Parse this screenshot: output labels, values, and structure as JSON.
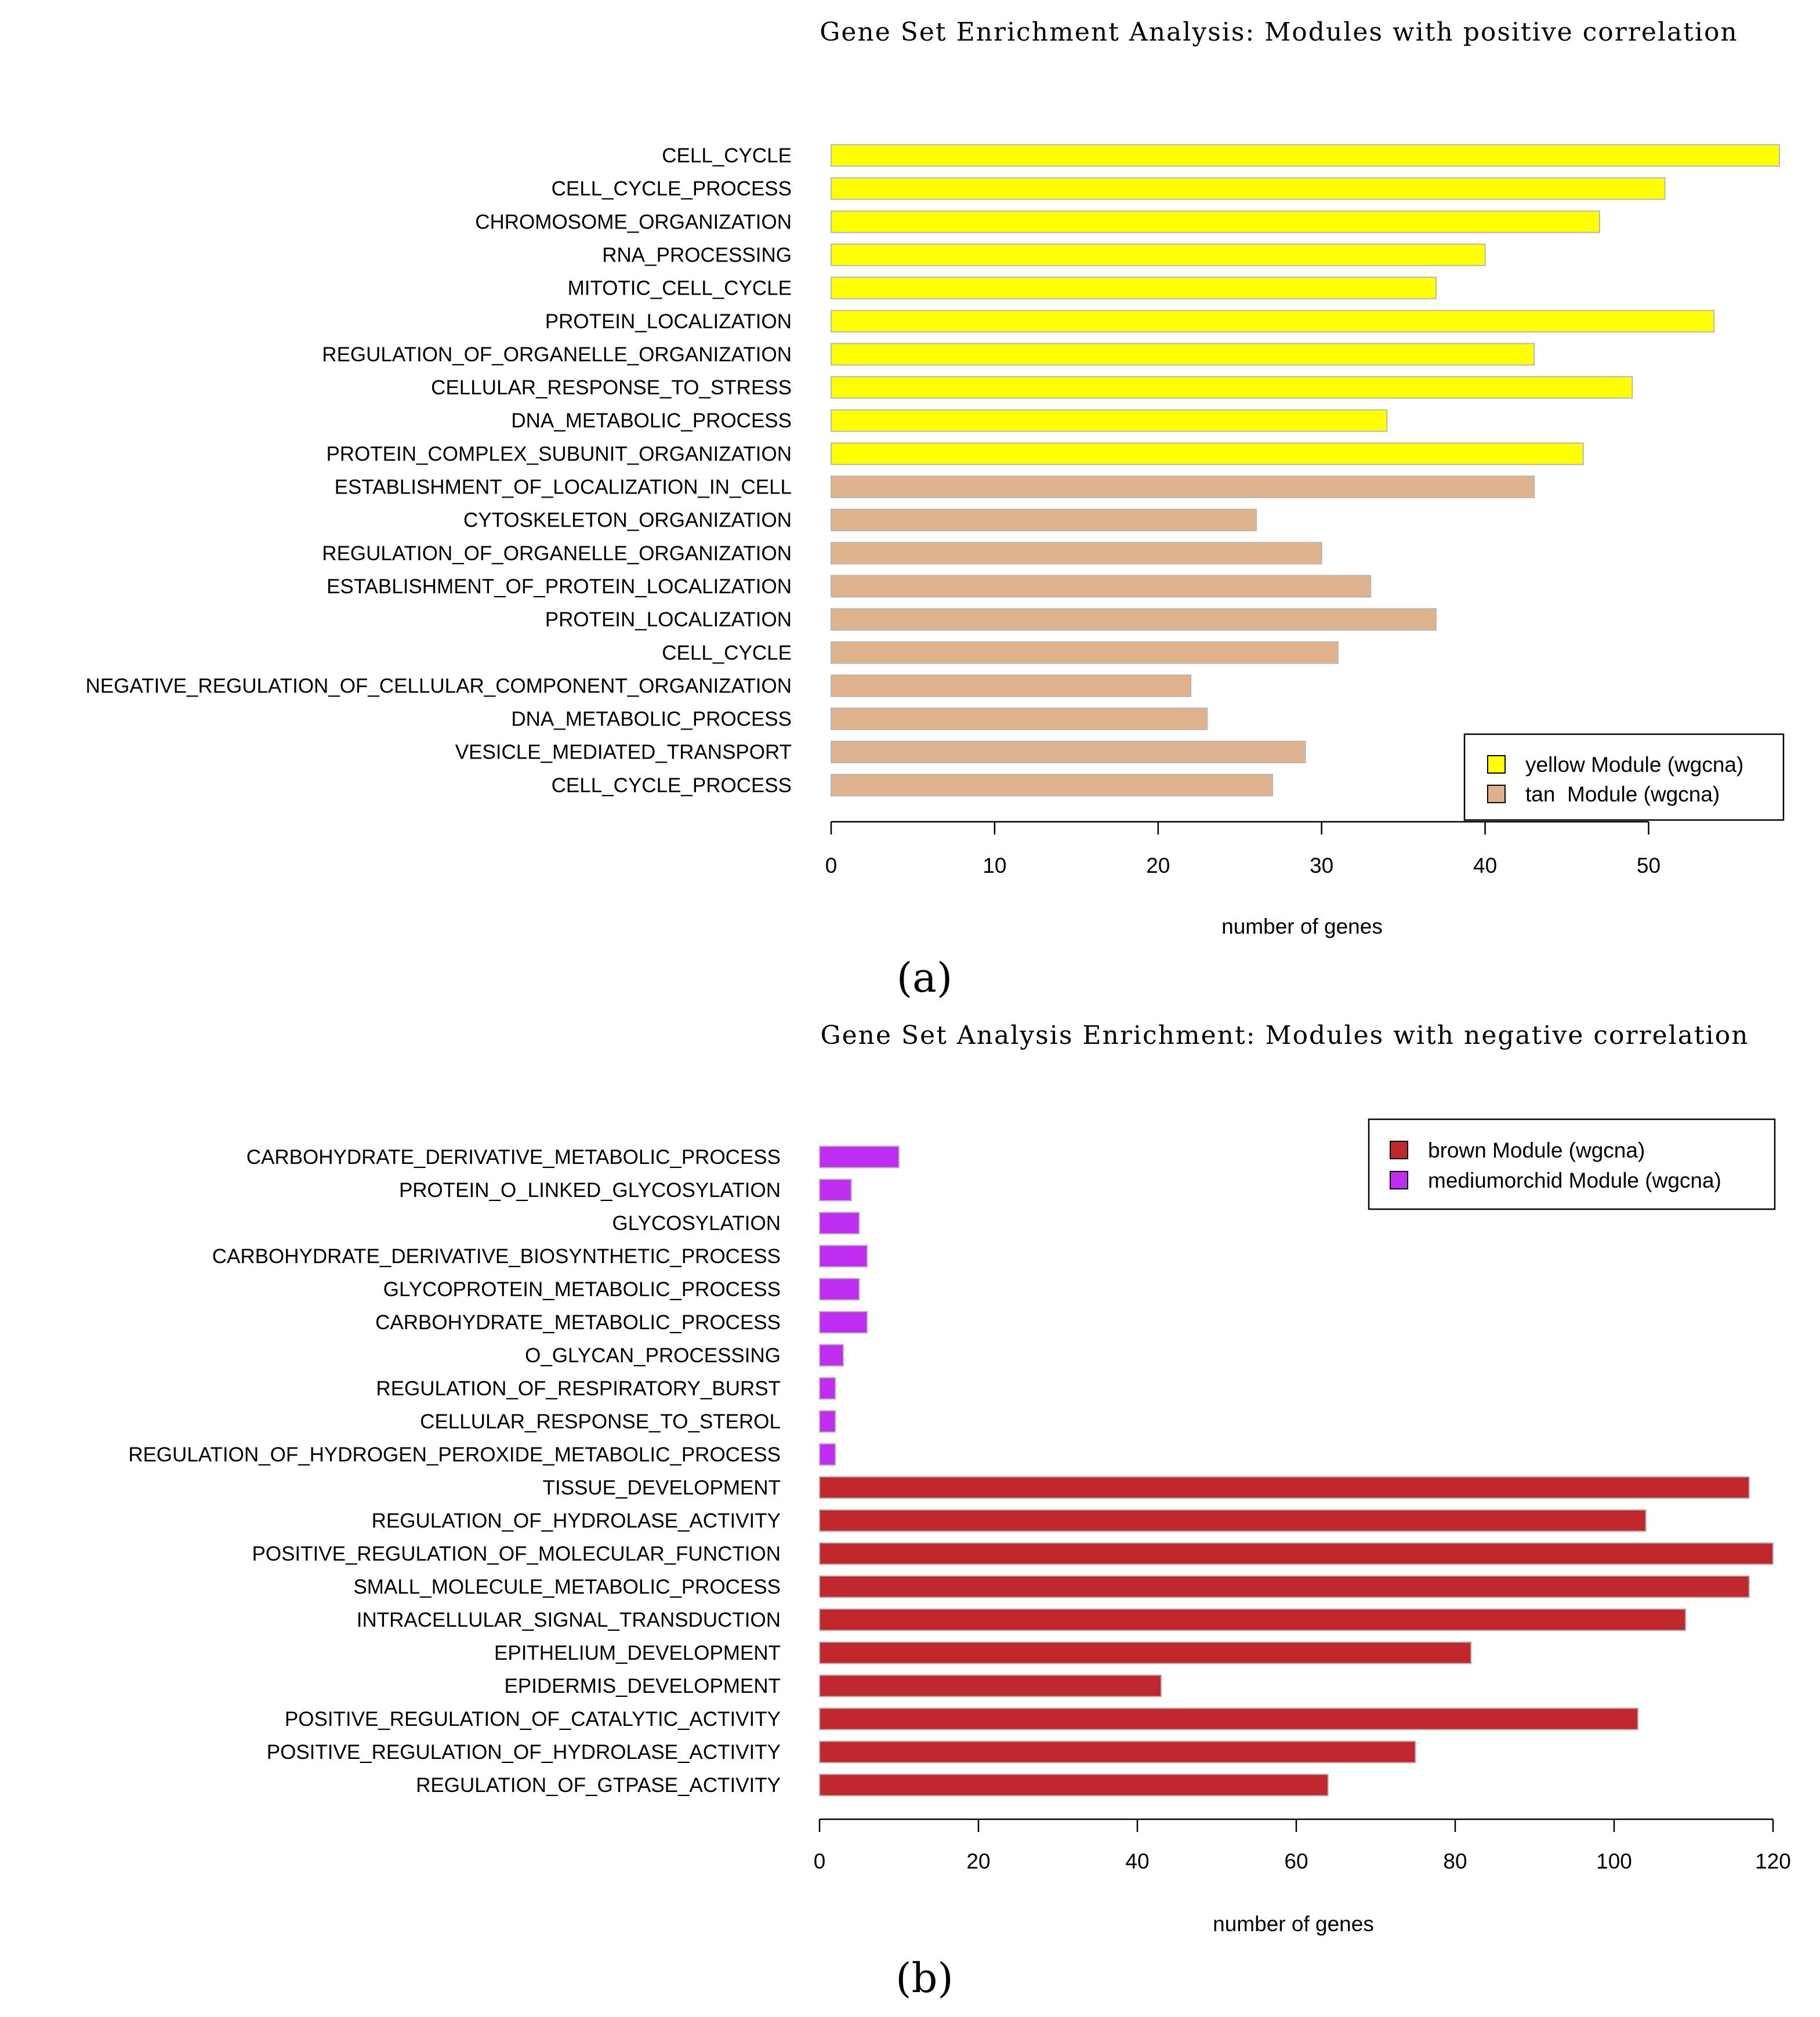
{
  "chart_data": [
    {
      "panel": "(a)",
      "type": "bar",
      "orientation": "horizontal",
      "title": "Gene Set Enrichment Analysis: Modules with positive correlation",
      "xlabel": "number of genes",
      "xlim": [
        0,
        58
      ],
      "xticks": [
        0,
        10,
        20,
        30,
        40,
        50
      ],
      "legend_position": "bottom-right",
      "series": [
        {
          "name": "yellow Module (wgcna)",
          "color": "#ffff00",
          "categories": [
            "CELL_CYCLE",
            "CELL_CYCLE_PROCESS",
            "CHROMOSOME_ORGANIZATION",
            "RNA_PROCESSING",
            "MITOTIC_CELL_CYCLE",
            "PROTEIN_LOCALIZATION",
            "REGULATION_OF_ORGANELLE_ORGANIZATION",
            "CELLULAR_RESPONSE_TO_STRESS",
            "DNA_METABOLIC_PROCESS",
            "PROTEIN_COMPLEX_SUBUNIT_ORGANIZATION"
          ],
          "values": [
            58,
            51,
            47,
            40,
            37,
            54,
            43,
            49,
            34,
            46
          ]
        },
        {
          "name": "tan  Module (wgcna)",
          "color": "#deb28c",
          "categories": [
            "ESTABLISHMENT_OF_LOCALIZATION_IN_CELL",
            "CYTOSKELETON_ORGANIZATION",
            "REGULATION_OF_ORGANELLE_ORGANIZATION",
            "ESTABLISHMENT_OF_PROTEIN_LOCALIZATION",
            "PROTEIN_LOCALIZATION",
            "CELL_CYCLE",
            "NEGATIVE_REGULATION_OF_CELLULAR_COMPONENT_ORGANIZATION",
            "DNA_METABOLIC_PROCESS",
            "VESICLE_MEDIATED_TRANSPORT",
            "CELL_CYCLE_PROCESS"
          ],
          "values": [
            43,
            26,
            30,
            33,
            37,
            31,
            22,
            23,
            29,
            27
          ]
        }
      ]
    },
    {
      "panel": "(b)",
      "type": "bar",
      "orientation": "horizontal",
      "title": "Gene Set Analysis Enrichment: Modules with negative correlation",
      "xlabel": "number of genes",
      "xlim": [
        0,
        120
      ],
      "xticks": [
        0,
        20,
        40,
        60,
        80,
        100,
        120
      ],
      "legend_position": "top-right",
      "series": [
        {
          "name": "mediumorchid Module (wgcna)",
          "color": "#bf2ef0",
          "categories": [
            "CARBOHYDRATE_DERIVATIVE_METABOLIC_PROCESS",
            "PROTEIN_O_LINKED_GLYCOSYLATION",
            "GLYCOSYLATION",
            "CARBOHYDRATE_DERIVATIVE_BIOSYNTHETIC_PROCESS",
            "GLYCOPROTEIN_METABOLIC_PROCESS",
            "CARBOHYDRATE_METABOLIC_PROCESS",
            "O_GLYCAN_PROCESSING",
            "REGULATION_OF_RESPIRATORY_BURST",
            "CELLULAR_RESPONSE_TO_STEROL",
            "REGULATION_OF_HYDROGEN_PEROXIDE_METABOLIC_PROCESS"
          ],
          "values": [
            10,
            4,
            5,
            6,
            5,
            6,
            3,
            2,
            2,
            2
          ]
        },
        {
          "name": "brown Module (wgcna)",
          "color": "#c0282d",
          "categories": [
            "TISSUE_DEVELOPMENT",
            "REGULATION_OF_HYDROLASE_ACTIVITY",
            "POSITIVE_REGULATION_OF_MOLECULAR_FUNCTION",
            "SMALL_MOLECULE_METABOLIC_PROCESS",
            "INTRACELLULAR_SIGNAL_TRANSDUCTION",
            "EPITHELIUM_DEVELOPMENT",
            "EPIDERMIS_DEVELOPMENT",
            "POSITIVE_REGULATION_OF_CATALYTIC_ACTIVITY",
            "POSITIVE_REGULATION_OF_HYDROLASE_ACTIVITY",
            "REGULATION_OF_GTPASE_ACTIVITY"
          ],
          "values": [
            117,
            104,
            120,
            117,
            109,
            82,
            43,
            103,
            75,
            64
          ]
        }
      ]
    }
  ]
}
